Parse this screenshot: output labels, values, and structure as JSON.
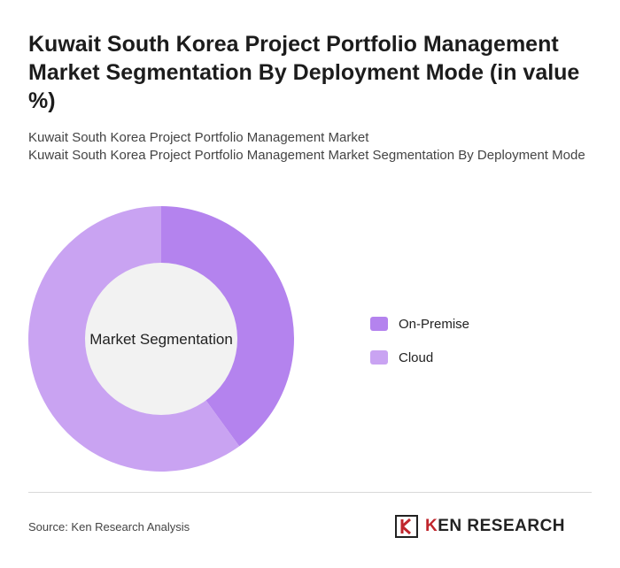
{
  "header": {
    "title": "Kuwait South Korea Project Portfolio Management Market Segmentation By Deployment Mode (in value %)",
    "subtitle_line1": "Kuwait South Korea Project Portfolio Management Market",
    "subtitle_line2": "Kuwait South Korea Project Portfolio Management Market Segmentation By Deployment Mode"
  },
  "chart_data": {
    "type": "pie",
    "variant": "donut",
    "center_label": "Market Segmentation",
    "categories": [
      "On-Premise",
      "Cloud"
    ],
    "values": [
      40,
      60
    ],
    "colors": [
      "#b483ee",
      "#c9a3f2"
    ],
    "legend_position": "right"
  },
  "footer": {
    "source": "Source: Ken Research Analysis",
    "logo_prefix": "K",
    "logo_text": "EN RESEARCH"
  }
}
